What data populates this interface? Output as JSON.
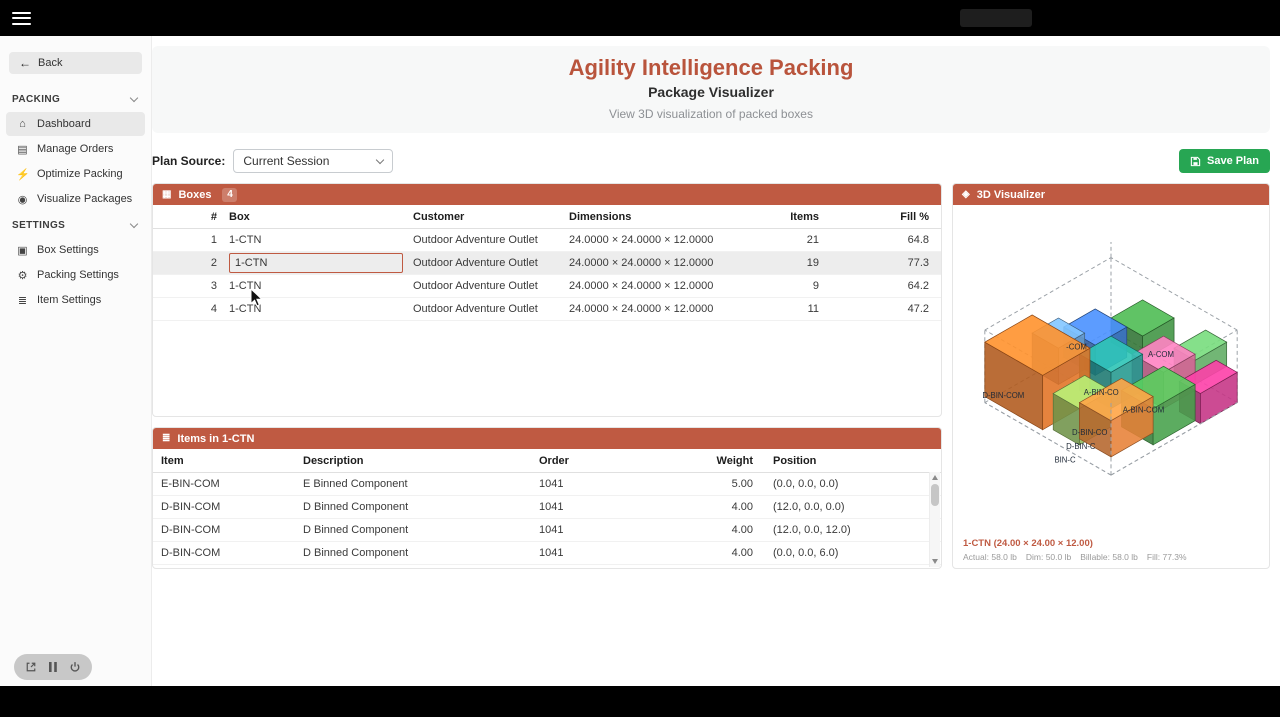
{
  "colors": {
    "accent": "#b9543c",
    "panel_header": "#bf5a42",
    "save_green": "#27a653",
    "selection_border": "#bf5a42"
  },
  "icons": {
    "hamburger": "menu-bars",
    "back": "←",
    "dashboard": "⌂",
    "manage_orders": "▤",
    "optimize_packing": "⚡",
    "visualize_packages": "◉",
    "box_settings": "▣",
    "packing_settings": "⚙",
    "item_settings": "≣",
    "boxes_panel": "▦",
    "items_panel": "≣",
    "visualizer_panel": "◈"
  },
  "sidebar": {
    "back_label": "Back",
    "sections": [
      {
        "label": "PACKING",
        "items": [
          "Dashboard",
          "Manage Orders",
          "Optimize Packing",
          "Visualize Packages"
        ]
      },
      {
        "label": "SETTINGS",
        "items": [
          "Box Settings",
          "Packing Settings",
          "Item Settings"
        ]
      }
    ]
  },
  "hero": {
    "title": "Agility Intelligence Packing",
    "subtitle": "Package Visualizer",
    "description": "View 3D visualization of packed boxes"
  },
  "controls": {
    "plan_source_label": "Plan Source:",
    "plan_source_value": "Current Session",
    "save_label": "Save Plan"
  },
  "boxes": {
    "title": "Boxes",
    "count": "4",
    "columns": {
      "num": "#",
      "box": "Box",
      "customer": "Customer",
      "dimensions": "Dimensions",
      "items": "Items",
      "fill": "Fill %"
    },
    "rows": [
      {
        "num": "1",
        "box": "1-CTN",
        "customer": "Outdoor Adventure Outlet",
        "dimensions": "24.0000 × 24.0000 × 12.0000",
        "items": "21",
        "fill": "64.8"
      },
      {
        "num": "2",
        "box": "1-CTN",
        "customer": "Outdoor Adventure Outlet",
        "dimensions": "24.0000 × 24.0000 × 12.0000",
        "items": "19",
        "fill": "77.3"
      },
      {
        "num": "3",
        "box": "1-CTN",
        "customer": "Outdoor Adventure Outlet",
        "dimensions": "24.0000 × 24.0000 × 12.0000",
        "items": "9",
        "fill": "64.2"
      },
      {
        "num": "4",
        "box": "1-CTN",
        "customer": "Outdoor Adventure Outlet",
        "dimensions": "24.0000 × 24.0000 × 12.0000",
        "items": "11",
        "fill": "47.2"
      }
    ]
  },
  "items": {
    "title": "Items in 1-CTN",
    "columns": {
      "item": "Item",
      "description": "Description",
      "order": "Order",
      "weight": "Weight",
      "position": "Position"
    },
    "rows": [
      {
        "item": "E-BIN-COM",
        "description": "E Binned Component",
        "order": "1041",
        "weight": "5.00",
        "position": "(0.0, 0.0, 0.0)"
      },
      {
        "item": "D-BIN-COM",
        "description": "D Binned Component",
        "order": "1041",
        "weight": "4.00",
        "position": "(12.0, 0.0, 0.0)"
      },
      {
        "item": "D-BIN-COM",
        "description": "D Binned Component",
        "order": "1041",
        "weight": "4.00",
        "position": "(12.0, 0.0, 12.0)"
      },
      {
        "item": "D-BIN-COM",
        "description": "D Binned Component",
        "order": "1041",
        "weight": "4.00",
        "position": "(0.0, 0.0, 6.0)"
      }
    ]
  },
  "visualizer": {
    "title": "3D Visualizer",
    "caption": "1-CTN (24.00 × 24.00 × 12.00)",
    "stats": {
      "actual": "Actual: 58.0 lb",
      "dim": "Dim: 50.0 lb",
      "billable": "Billable: 58.0 lb",
      "fill": "Fill: 77.3%"
    },
    "box_labels": [
      "-COM",
      "A-COM",
      "D-BIN-COM",
      "A-BIN-CO",
      "A-BIN-COM",
      "D-BIN-CO",
      "D-BIN-C",
      "BIN-C"
    ]
  }
}
